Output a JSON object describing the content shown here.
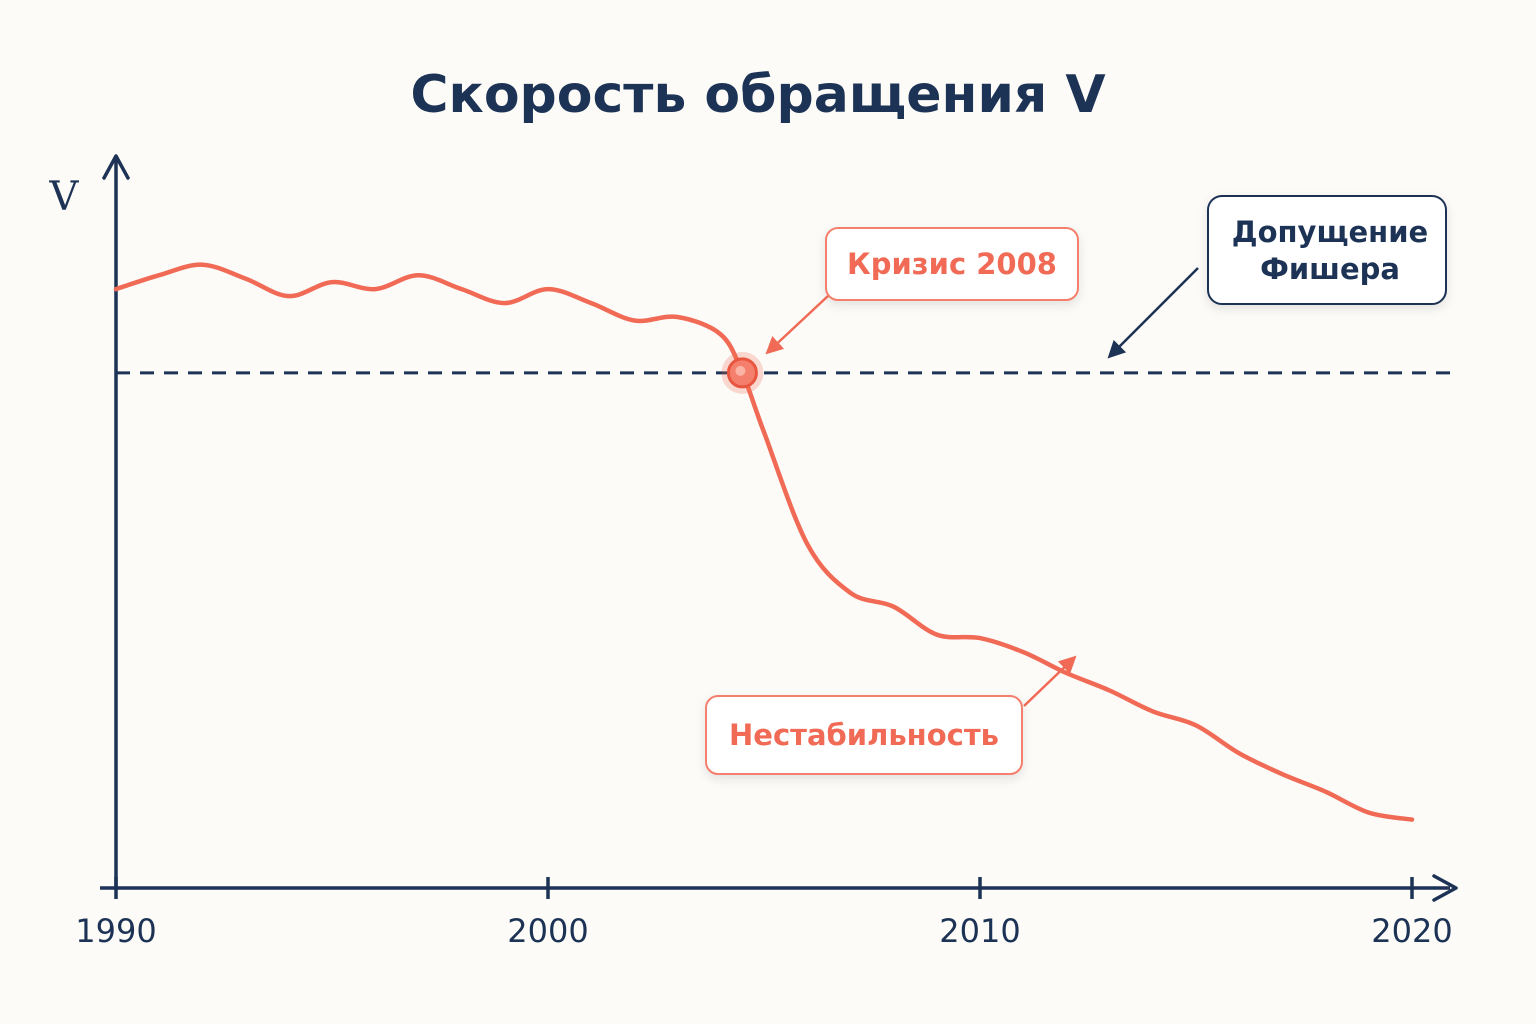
{
  "chart_data": {
    "type": "line",
    "title": "Скорость обращения V",
    "ylabel": "V",
    "xlabel": "",
    "x_ticks": [
      "1990",
      "2000",
      "2010",
      "2020"
    ],
    "xlim": [
      1990,
      2020
    ],
    "ylim": [
      0,
      100
    ],
    "grid": false,
    "series": [
      {
        "x": [
          1990,
          1991,
          1992,
          1993,
          1994,
          1995,
          1996,
          1997,
          1998,
          1999,
          2000,
          2001,
          2002,
          2003,
          2004,
          2004.5,
          2005,
          2006,
          2007,
          2008,
          2009,
          2010,
          2011,
          2012,
          2013,
          2014,
          2015,
          2016,
          2017,
          2018,
          2019,
          2020
        ],
        "y": [
          81.5,
          83.5,
          85,
          83,
          80.5,
          82.5,
          81.5,
          83.5,
          81.5,
          79.5,
          81.5,
          79.5,
          77,
          77.5,
          75,
          69.5,
          61,
          45,
          38,
          36,
          32,
          31.5,
          29.5,
          26.5,
          24,
          21,
          19,
          15,
          12,
          9.5,
          6.5,
          5.5
        ],
        "color": "#f06a55"
      }
    ],
    "reference_line": {
      "y": 69.5,
      "style": "dashed",
      "color": "#1d3355"
    },
    "highlight_point": {
      "x": 2004.5,
      "y": 69.5
    },
    "annotations": [
      {
        "text": "Кризис 2008",
        "color": "#f06a55"
      },
      {
        "text_lines": [
          "Допущение",
          "Фишера"
        ],
        "color": "#1d3355"
      },
      {
        "text": "Нестабильность",
        "color": "#f06a55"
      }
    ]
  }
}
